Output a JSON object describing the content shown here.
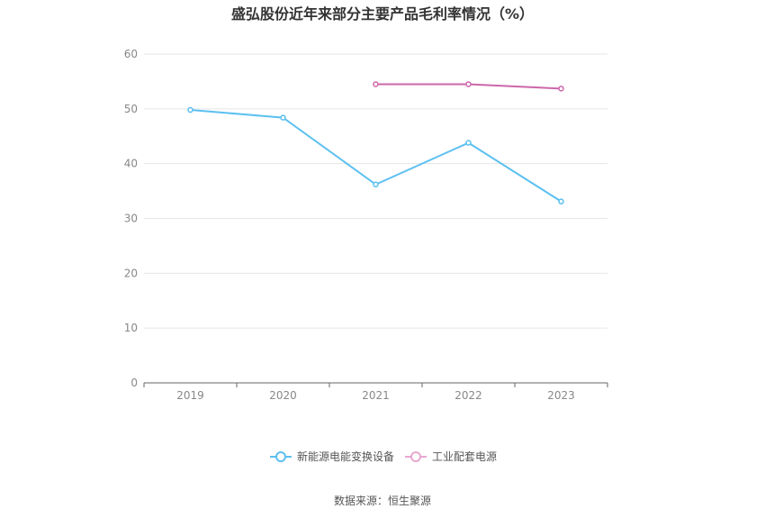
{
  "chart_data": {
    "type": "line",
    "title": "盛弘股份近年来部分主要产品毛利率情况（%）",
    "categories": [
      "2019",
      "2020",
      "2021",
      "2022",
      "2023"
    ],
    "ylim": [
      0,
      60
    ],
    "yticks": [
      0,
      10,
      20,
      30,
      40,
      50,
      60
    ],
    "grid": true,
    "legend_position": "bottom",
    "series": [
      {
        "name": "新能源电能变换设备",
        "color": "#5bc0f0",
        "values": [
          49.8,
          48.4,
          36.2,
          43.8,
          33.1
        ]
      },
      {
        "name": "工业配套电源",
        "color": "#cc66aa",
        "legend_color": "#e7a7cf",
        "values": [
          null,
          null,
          54.5,
          54.5,
          53.7
        ]
      }
    ]
  },
  "footer": {
    "source": "数据来源：恒生聚源"
  }
}
